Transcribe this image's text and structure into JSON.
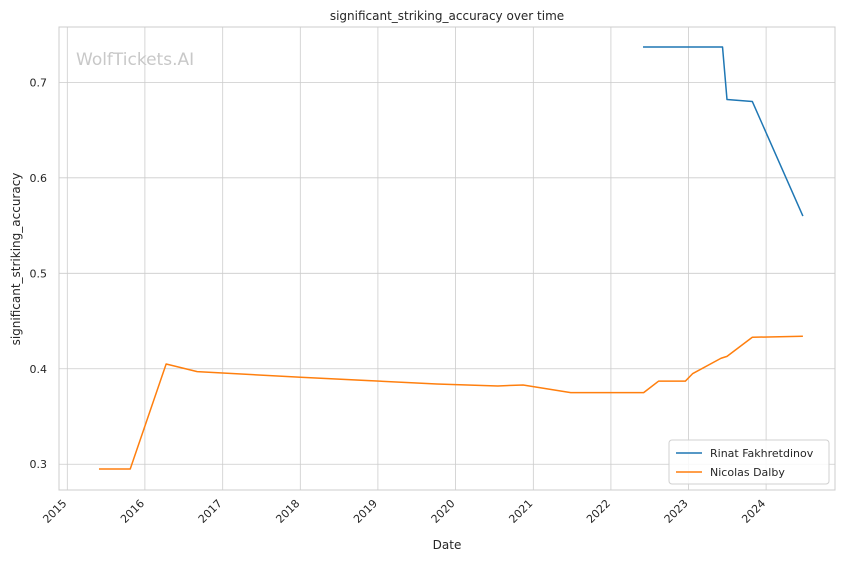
{
  "chart_data": {
    "type": "line",
    "title": "significant_striking_accuracy over time",
    "xlabel": "Date",
    "ylabel": "significant_striking_accuracy",
    "watermark": "WolfTickets.AI",
    "x_axis_type": "date",
    "xlim": [
      "2014-11-23",
      "2024-11-20"
    ],
    "ylim": [
      0.273,
      0.758
    ],
    "x_ticks": [
      "2015",
      "2016",
      "2017",
      "2018",
      "2019",
      "2020",
      "2021",
      "2022",
      "2023",
      "2024"
    ],
    "y_ticks": [
      0.3,
      0.4,
      0.5,
      0.6,
      0.7
    ],
    "y_tick_labels": [
      "0.3",
      "0.4",
      "0.5",
      "0.6",
      "0.7"
    ],
    "grid": true,
    "legend_position": "bottom-right",
    "series": [
      {
        "name": "Rinat Fakhretdinov",
        "color": "#1f77b4",
        "points": [
          {
            "x": "2022-06-01",
            "y": 0.737
          },
          {
            "x": "2023-06-10",
            "y": 0.737
          },
          {
            "x": "2023-07-01",
            "y": 0.682
          },
          {
            "x": "2023-10-28",
            "y": 0.68
          },
          {
            "x": "2024-06-22",
            "y": 0.56
          }
        ]
      },
      {
        "name": "Nicolas Dalby",
        "color": "#ff7f0e",
        "points": [
          {
            "x": "2015-05-30",
            "y": 0.295
          },
          {
            "x": "2015-10-24",
            "y": 0.295
          },
          {
            "x": "2016-04-10",
            "y": 0.405
          },
          {
            "x": "2016-09-03",
            "y": 0.397
          },
          {
            "x": "2018-01-14",
            "y": 0.391
          },
          {
            "x": "2019-10-05",
            "y": 0.384
          },
          {
            "x": "2020-07-18",
            "y": 0.382
          },
          {
            "x": "2020-11-14",
            "y": 0.383
          },
          {
            "x": "2021-06-26",
            "y": 0.375
          },
          {
            "x": "2022-06-04",
            "y": 0.375
          },
          {
            "x": "2022-08-13",
            "y": 0.387
          },
          {
            "x": "2022-12-17",
            "y": 0.387
          },
          {
            "x": "2023-01-21",
            "y": 0.395
          },
          {
            "x": "2023-06-03",
            "y": 0.411
          },
          {
            "x": "2023-07-01",
            "y": 0.413
          },
          {
            "x": "2023-10-28",
            "y": 0.433
          },
          {
            "x": "2024-06-22",
            "y": 0.434
          }
        ]
      }
    ]
  }
}
